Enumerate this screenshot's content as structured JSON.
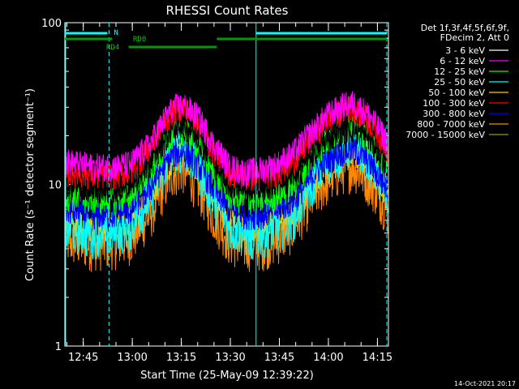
{
  "chart_data": {
    "type": "line",
    "title": "RHESSI Count Rates",
    "xlabel": "Start Time (25-May-09 12:39:22)",
    "ylabel": "Count Rate (s⁻¹ detector segment⁻¹)",
    "y_scale": "log",
    "ylim": [
      1,
      100
    ],
    "xlim": [
      "12:39:22",
      "12:39:22 + 99 min"
    ],
    "x_tick_labels": [
      "12:45",
      "13:00",
      "13:15",
      "13:30",
      "13:45",
      "14:00",
      "14:15"
    ],
    "x_tick_minutes": [
      5.63,
      20.63,
      35.63,
      50.63,
      65.63,
      80.63,
      95.63
    ],
    "y_tick_labels": [
      "1",
      "10",
      "100"
    ],
    "y_tick_values": [
      1,
      10,
      100
    ],
    "legend_header": [
      "Det 1f,3f,4f,5f,6f,9f,",
      "FDecim 2, Att 0"
    ],
    "legend_position": "right",
    "footer_date": "14-Oct-2021 20:17",
    "annotations": {
      "n_label": "N",
      "rd0_label": "RD0",
      "rd4_label": "RD4"
    },
    "x_minutes_since_start": [
      0,
      8,
      15,
      20,
      26,
      30,
      33,
      36,
      40,
      45,
      50,
      55,
      60,
      65,
      70,
      75,
      80,
      85,
      88,
      92,
      96,
      99
    ],
    "series": [
      {
        "name": "3 - 6 keV",
        "color": "#000000",
        "values": [
          10,
          9.5,
          9.5,
          10,
          14,
          19,
          23,
          24,
          20,
          14,
          10,
          9.5,
          9.5,
          10,
          11.5,
          15,
          19,
          22,
          22,
          20,
          16,
          13
        ]
      },
      {
        "name": "6 - 12 keV",
        "color": "#ff00ff",
        "values": [
          14,
          13,
          13,
          13.5,
          18,
          25,
          30,
          31,
          27,
          18,
          13,
          12,
          12.5,
          13.5,
          16,
          21,
          27,
          31,
          32,
          28,
          22,
          18
        ]
      },
      {
        "name": "12 - 25 keV",
        "color": "#00ff00",
        "values": [
          8.5,
          8,
          8,
          8.5,
          12,
          17,
          21,
          22,
          18,
          12,
          8.5,
          8,
          8,
          8.5,
          10,
          14,
          19,
          22,
          23,
          20,
          15,
          11.5
        ]
      },
      {
        "name": "25 - 50 keV",
        "color": "#00ffff",
        "values": [
          5.5,
          5,
          5.2,
          5.6,
          8.5,
          12.5,
          16,
          17,
          13.5,
          8.5,
          5.5,
          5,
          5,
          5.5,
          6.5,
          10,
          14,
          17,
          18,
          15,
          11,
          8
        ]
      },
      {
        "name": "50 - 100 keV",
        "color": "#ffcc00",
        "values": [
          6,
          5.5,
          5.6,
          6,
          8.5,
          12,
          14.5,
          15.5,
          12.5,
          8.5,
          6,
          5.5,
          5.5,
          6,
          7,
          10,
          13,
          15,
          15.5,
          13.5,
          10.5,
          8
        ]
      },
      {
        "name": "100 - 300 keV",
        "color": "#ff0000",
        "values": [
          12,
          11.5,
          11.5,
          12,
          17,
          24,
          29,
          30,
          25,
          16.5,
          12,
          11,
          11.5,
          12,
          14,
          19,
          25,
          29,
          30,
          26,
          20,
          16
        ]
      },
      {
        "name": "300 - 800 keV",
        "color": "#0000ff",
        "values": [
          7,
          6.5,
          6.5,
          7,
          9.5,
          13,
          15.5,
          16,
          13.5,
          9.5,
          7,
          6.5,
          6.5,
          7,
          8,
          11,
          14,
          16,
          16.5,
          14.5,
          11,
          9
        ]
      },
      {
        "name": "800 - 7000 keV",
        "color": "#ff8800",
        "values": [
          4.5,
          4.2,
          4.3,
          4.6,
          6.5,
          9.5,
          12,
          12.5,
          10,
          6.5,
          4.5,
          4.2,
          4.2,
          4.6,
          5.5,
          8,
          10.5,
          12.5,
          13,
          11,
          8.5,
          6.5
        ]
      },
      {
        "name": "7000 - 15000 keV",
        "color": "#999900",
        "values": []
      }
    ],
    "vertical_markers_minutes": [
      0,
      13.5,
      58.5,
      98.5
    ],
    "vertical_marker_labels": [
      "",
      "",
      "",
      ""
    ]
  }
}
